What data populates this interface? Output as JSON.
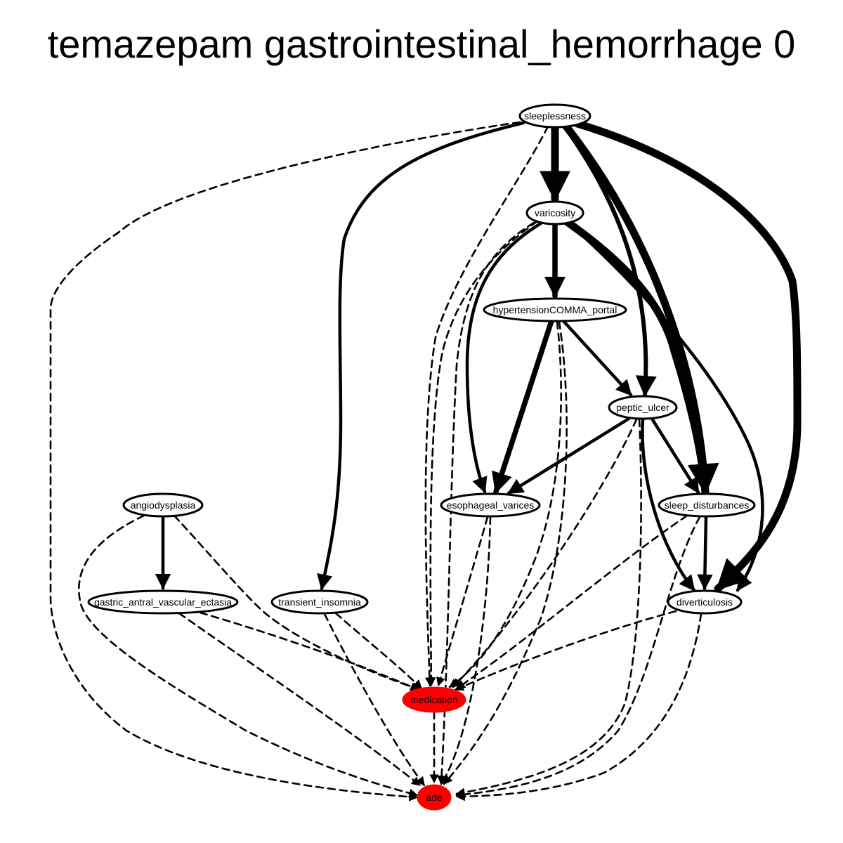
{
  "title": "temazepam gastrointestinal_hemorrhage 0",
  "colors": {
    "highlight": "#ff0000",
    "stroke": "#000000"
  },
  "nodes": [
    {
      "id": "sleeplessness",
      "label": "sleeplessness",
      "highlight": false
    },
    {
      "id": "varicosity",
      "label": "varicosity",
      "highlight": false
    },
    {
      "id": "hypertension_portal",
      "label": "hypertensionCOMMA_portal",
      "highlight": false
    },
    {
      "id": "peptic_ulcer",
      "label": "peptic_ulcer",
      "highlight": false
    },
    {
      "id": "angiodysplasia",
      "label": "angiodysplasia",
      "highlight": false
    },
    {
      "id": "esophageal_varices",
      "label": "esophageal_varices",
      "highlight": false
    },
    {
      "id": "sleep_disturbances",
      "label": "sleep_disturbances",
      "highlight": false
    },
    {
      "id": "gastric_antral_vascular_ectasia",
      "label": "gastric_antral_vascular_ectasia",
      "highlight": false
    },
    {
      "id": "transient_insomnia",
      "label": "transient_insomnia",
      "highlight": false
    },
    {
      "id": "diverticulosis",
      "label": "diverticulosis",
      "highlight": false
    },
    {
      "id": "medication",
      "label": "medication",
      "highlight": true
    },
    {
      "id": "ade",
      "label": "ade",
      "highlight": true
    }
  ],
  "edges": [
    {
      "from": "sleeplessness",
      "to": "varicosity",
      "style": "solid",
      "weight": 5
    },
    {
      "from": "sleeplessness",
      "to": "peptic_ulcer",
      "style": "solid",
      "weight": 3
    },
    {
      "from": "sleeplessness",
      "to": "sleep_disturbances",
      "style": "solid",
      "weight": 5
    },
    {
      "from": "sleeplessness",
      "to": "diverticulosis",
      "style": "solid",
      "weight": 5
    },
    {
      "from": "sleeplessness",
      "to": "transient_insomnia",
      "style": "solid",
      "weight": 2
    },
    {
      "from": "sleeplessness",
      "to": "medication",
      "style": "dashed",
      "weight": 1
    },
    {
      "from": "sleeplessness",
      "to": "ade",
      "style": "dashed",
      "weight": 1
    },
    {
      "from": "varicosity",
      "to": "hypertension_portal",
      "style": "solid",
      "weight": 4
    },
    {
      "from": "varicosity",
      "to": "esophageal_varices",
      "style": "solid",
      "weight": 2
    },
    {
      "from": "varicosity",
      "to": "sleep_disturbances",
      "style": "solid",
      "weight": 5
    },
    {
      "from": "varicosity",
      "to": "diverticulosis",
      "style": "solid",
      "weight": 2
    },
    {
      "from": "varicosity",
      "to": "medication",
      "style": "dashed",
      "weight": 1
    },
    {
      "from": "varicosity",
      "to": "ade",
      "style": "dashed",
      "weight": 1
    },
    {
      "from": "hypertension_portal",
      "to": "esophageal_varices",
      "style": "solid",
      "weight": 4
    },
    {
      "from": "hypertension_portal",
      "to": "peptic_ulcer",
      "style": "solid",
      "weight": 2
    },
    {
      "from": "hypertension_portal",
      "to": "medication",
      "style": "dashed",
      "weight": 1
    },
    {
      "from": "hypertension_portal",
      "to": "ade",
      "style": "dashed",
      "weight": 1
    },
    {
      "from": "peptic_ulcer",
      "to": "esophageal_varices",
      "style": "solid",
      "weight": 2
    },
    {
      "from": "peptic_ulcer",
      "to": "sleep_disturbances",
      "style": "solid",
      "weight": 2
    },
    {
      "from": "peptic_ulcer",
      "to": "diverticulosis",
      "style": "solid",
      "weight": 2
    },
    {
      "from": "peptic_ulcer",
      "to": "medication",
      "style": "dashed",
      "weight": 1
    },
    {
      "from": "peptic_ulcer",
      "to": "ade",
      "style": "dashed",
      "weight": 1
    },
    {
      "from": "angiodysplasia",
      "to": "gastric_antral_vascular_ectasia",
      "style": "solid",
      "weight": 2
    },
    {
      "from": "angiodysplasia",
      "to": "medication",
      "style": "dashed",
      "weight": 1
    },
    {
      "from": "angiodysplasia",
      "to": "ade",
      "style": "dashed",
      "weight": 1
    },
    {
      "from": "esophageal_varices",
      "to": "medication",
      "style": "dashed",
      "weight": 1
    },
    {
      "from": "esophageal_varices",
      "to": "ade",
      "style": "dashed",
      "weight": 1
    },
    {
      "from": "sleep_disturbances",
      "to": "diverticulosis",
      "style": "solid",
      "weight": 2
    },
    {
      "from": "sleep_disturbances",
      "to": "medication",
      "style": "dashed",
      "weight": 1
    },
    {
      "from": "sleep_disturbances",
      "to": "ade",
      "style": "dashed",
      "weight": 1
    },
    {
      "from": "gastric_antral_vascular_ectasia",
      "to": "medication",
      "style": "dashed",
      "weight": 1
    },
    {
      "from": "gastric_antral_vascular_ectasia",
      "to": "ade",
      "style": "dashed",
      "weight": 1
    },
    {
      "from": "transient_insomnia",
      "to": "medication",
      "style": "dashed",
      "weight": 1
    },
    {
      "from": "transient_insomnia",
      "to": "ade",
      "style": "dashed",
      "weight": 1
    },
    {
      "from": "diverticulosis",
      "to": "medication",
      "style": "dashed",
      "weight": 1
    },
    {
      "from": "diverticulosis",
      "to": "ade",
      "style": "dashed",
      "weight": 1
    },
    {
      "from": "medication",
      "to": "ade",
      "style": "dashed",
      "weight": 1
    }
  ]
}
